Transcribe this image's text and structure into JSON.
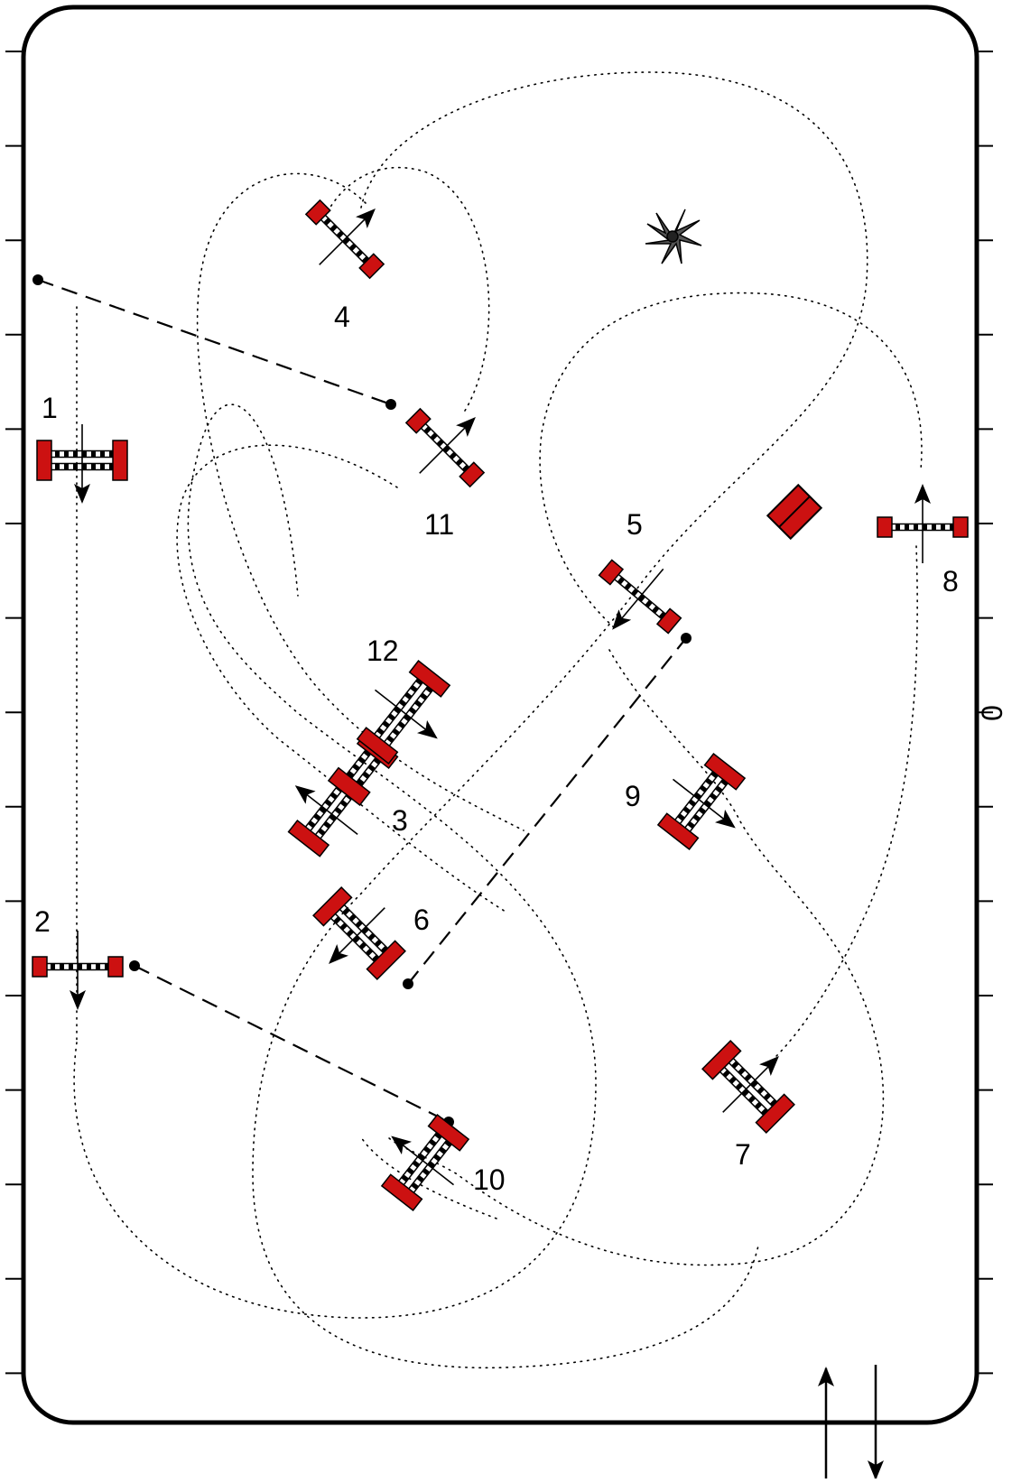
{
  "course": {
    "jumps": [
      {
        "label": "1",
        "kind": "oxer"
      },
      {
        "label": "2",
        "kind": "vertical"
      },
      {
        "label": "3",
        "kind": "combination"
      },
      {
        "label": "4",
        "kind": "vertical"
      },
      {
        "label": "5",
        "kind": "vertical"
      },
      {
        "label": "6",
        "kind": "oxer"
      },
      {
        "label": "7",
        "kind": "oxer"
      },
      {
        "label": "8",
        "kind": "vertical"
      },
      {
        "label": "9",
        "kind": "oxer"
      },
      {
        "label": "10",
        "kind": "oxer"
      },
      {
        "label": "11",
        "kind": "vertical"
      },
      {
        "label": "12",
        "kind": "oxer"
      }
    ],
    "side_marker": "0",
    "colors": {
      "standard": "#cc1111",
      "ink": "#000000"
    }
  }
}
